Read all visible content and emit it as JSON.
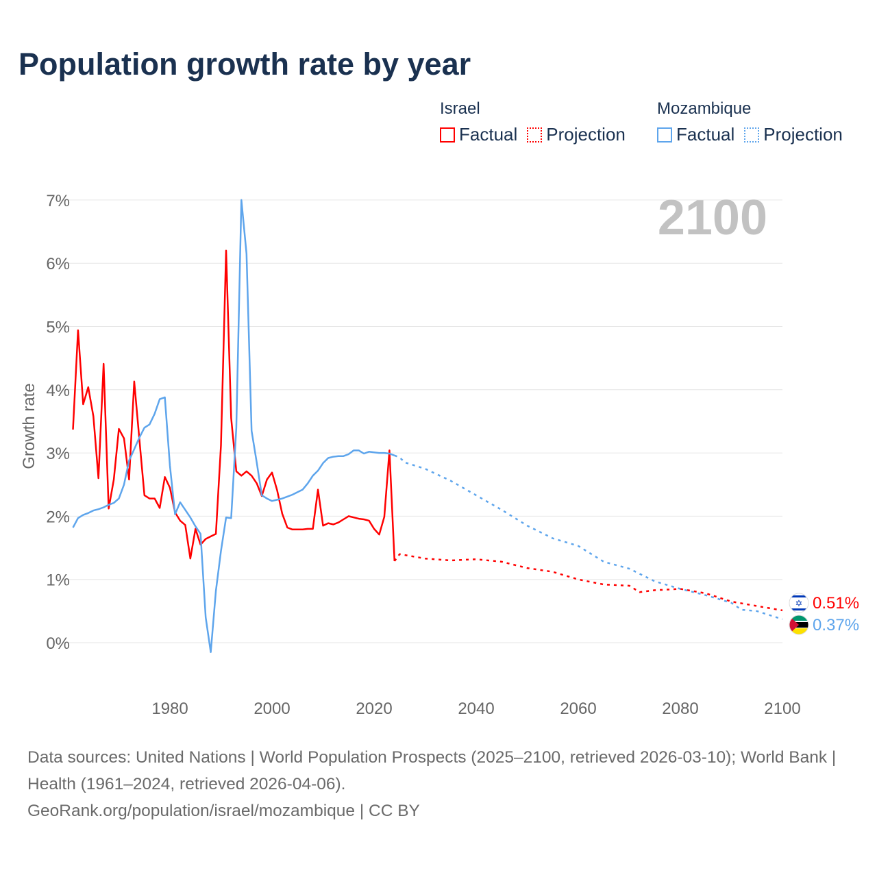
{
  "chart_data": {
    "type": "line",
    "title": "Population growth rate by year",
    "ylabel": "Growth rate",
    "xlabel": "",
    "xlim": [
      1961,
      2100
    ],
    "ylim": [
      -0.5,
      7.3
    ],
    "yticks": [
      0,
      1,
      2,
      3,
      4,
      5,
      6,
      7
    ],
    "ytick_labels": [
      "0%",
      "1%",
      "2%",
      "3%",
      "4%",
      "5%",
      "6%",
      "7%"
    ],
    "xticks": [
      1980,
      2000,
      2020,
      2040,
      2060,
      2080,
      2100
    ],
    "xtick_labels": [
      "1980",
      "2000",
      "2020",
      "2040",
      "2060",
      "2080",
      "2100"
    ],
    "grid": true,
    "year_display": "2100",
    "legend": {
      "placement": "top-right",
      "groups": [
        {
          "name": "Israel",
          "factual": "Factual",
          "projection": "Projection"
        },
        {
          "name": "Mozambique",
          "factual": "Factual",
          "projection": "Projection"
        }
      ]
    },
    "series": [
      {
        "name": "Israel",
        "kind": "Factual",
        "color": "#ff0000",
        "style": "solid",
        "start_year": 1961,
        "values": [
          3.37,
          4.94,
          3.77,
          4.04,
          3.58,
          2.6,
          4.41,
          2.12,
          2.58,
          3.38,
          3.23,
          2.58,
          4.13,
          3.23,
          2.33,
          2.28,
          2.28,
          2.13,
          2.62,
          2.45,
          2.06,
          1.93,
          1.86,
          1.33,
          1.8,
          1.55,
          1.64,
          1.68,
          1.72,
          3.12,
          6.2,
          3.55,
          2.71,
          2.64,
          2.71,
          2.64,
          2.52,
          2.32,
          2.58,
          2.69,
          2.41,
          2.04,
          1.82,
          1.79,
          1.79,
          1.79,
          1.8,
          1.8,
          2.42,
          1.85,
          1.89,
          1.87,
          1.9,
          1.95,
          2.0,
          1.98,
          1.96,
          1.95,
          1.93,
          1.8,
          1.71,
          1.99,
          3.04,
          1.29
        ]
      },
      {
        "name": "Israel",
        "kind": "Projection",
        "color": "#ff0000",
        "style": "dotted",
        "years": [
          2024,
          2025,
          2030,
          2035,
          2040,
          2045,
          2050,
          2055,
          2060,
          2065,
          2070,
          2072,
          2075,
          2080,
          2085,
          2090,
          2095,
          2100
        ],
        "values": [
          1.29,
          1.4,
          1.33,
          1.3,
          1.32,
          1.28,
          1.18,
          1.12,
          1.0,
          0.92,
          0.9,
          0.8,
          0.83,
          0.85,
          0.78,
          0.65,
          0.58,
          0.51
        ]
      },
      {
        "name": "Mozambique",
        "kind": "Factual",
        "color": "#5ea5ec",
        "style": "solid",
        "start_year": 1961,
        "values": [
          1.82,
          1.97,
          2.02,
          2.05,
          2.09,
          2.11,
          2.14,
          2.18,
          2.21,
          2.28,
          2.5,
          2.88,
          3.06,
          3.24,
          3.4,
          3.45,
          3.62,
          3.85,
          3.88,
          2.8,
          2.03,
          2.22,
          2.1,
          1.98,
          1.84,
          1.72,
          0.4,
          -0.15,
          0.82,
          1.45,
          1.98,
          1.97,
          3.4,
          7.0,
          6.15,
          3.35,
          2.85,
          2.33,
          2.28,
          2.24,
          2.26,
          2.28,
          2.31,
          2.34,
          2.38,
          2.42,
          2.52,
          2.64,
          2.72,
          2.84,
          2.92,
          2.94,
          2.95,
          2.95,
          2.98,
          3.04,
          3.04,
          2.99,
          3.02,
          3.01,
          3.0,
          3.0,
          2.99,
          2.96
        ]
      },
      {
        "name": "Mozambique",
        "kind": "Projection",
        "color": "#5ea5ec",
        "style": "dotted",
        "years": [
          2024,
          2025,
          2026,
          2030,
          2035,
          2040,
          2045,
          2050,
          2055,
          2060,
          2065,
          2070,
          2075,
          2080,
          2085,
          2090,
          2092,
          2095,
          2100
        ],
        "values": [
          2.96,
          2.93,
          2.85,
          2.75,
          2.56,
          2.33,
          2.1,
          1.85,
          1.65,
          1.53,
          1.28,
          1.17,
          0.97,
          0.85,
          0.75,
          0.63,
          0.52,
          0.5,
          0.37
        ]
      }
    ],
    "end_labels": [
      {
        "name": "Israel",
        "text": "0.51%",
        "color": "#ff0000",
        "flag": "israel-flag"
      },
      {
        "name": "Mozambique",
        "text": "0.37%",
        "color": "#5ea5ec",
        "flag": "mozambique-flag"
      }
    ]
  },
  "footer": {
    "sources": "Data sources: United Nations | World Population Prospects (2025–2100, retrieved 2026-03-10); World Bank | Health (1961–2024, retrieved 2026-04-06).",
    "credit": "GeoRank.org/population/israel/mozambique | CC BY"
  }
}
